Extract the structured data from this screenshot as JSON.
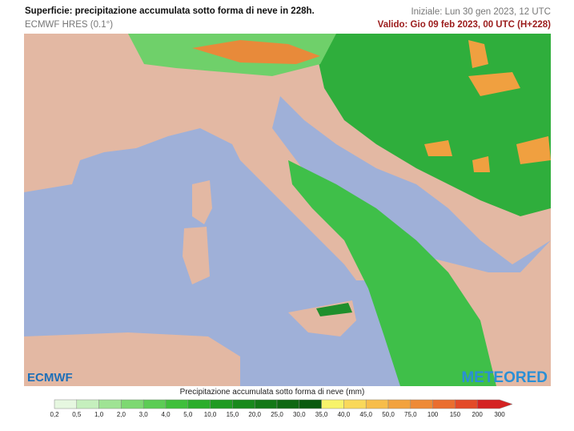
{
  "header": {
    "title": "Superficie: precipitazione accumulata sotto forma di neve in 228h.",
    "model": "ECMWF HRES (0.1°)",
    "initial": "Iniziale: Lun 30 gen 2023, 12 UTC",
    "valid": "Valido: Gio 09 feb 2023, 00 UTC (H+228)"
  },
  "logos": {
    "left": "ECMWF",
    "right": "METEORED"
  },
  "legend": {
    "title": "Precipitazione accumulata sotto forma di neve (mm)",
    "ticks": [
      "0,2",
      "0,5",
      "1,0",
      "2,0",
      "3,0",
      "4,0",
      "5,0",
      "10,0",
      "15,0",
      "20,0",
      "25,0",
      "30,0",
      "35,0",
      "40,0",
      "45,0",
      "50,0",
      "75,0",
      "100",
      "150",
      "200",
      "300"
    ],
    "colors": [
      "#e6f7e0",
      "#c5efbd",
      "#9fe394",
      "#7dd872",
      "#5ccc55",
      "#3fbf3b",
      "#2aad2a",
      "#1f9a22",
      "#18891c",
      "#137817",
      "#0f6813",
      "#0a5a0e",
      "#f7f36a",
      "#f9d85a",
      "#f7bd4a",
      "#f2a23e",
      "#ee8a36",
      "#ea6e2e",
      "#e34a28",
      "#d42222"
    ]
  }
}
